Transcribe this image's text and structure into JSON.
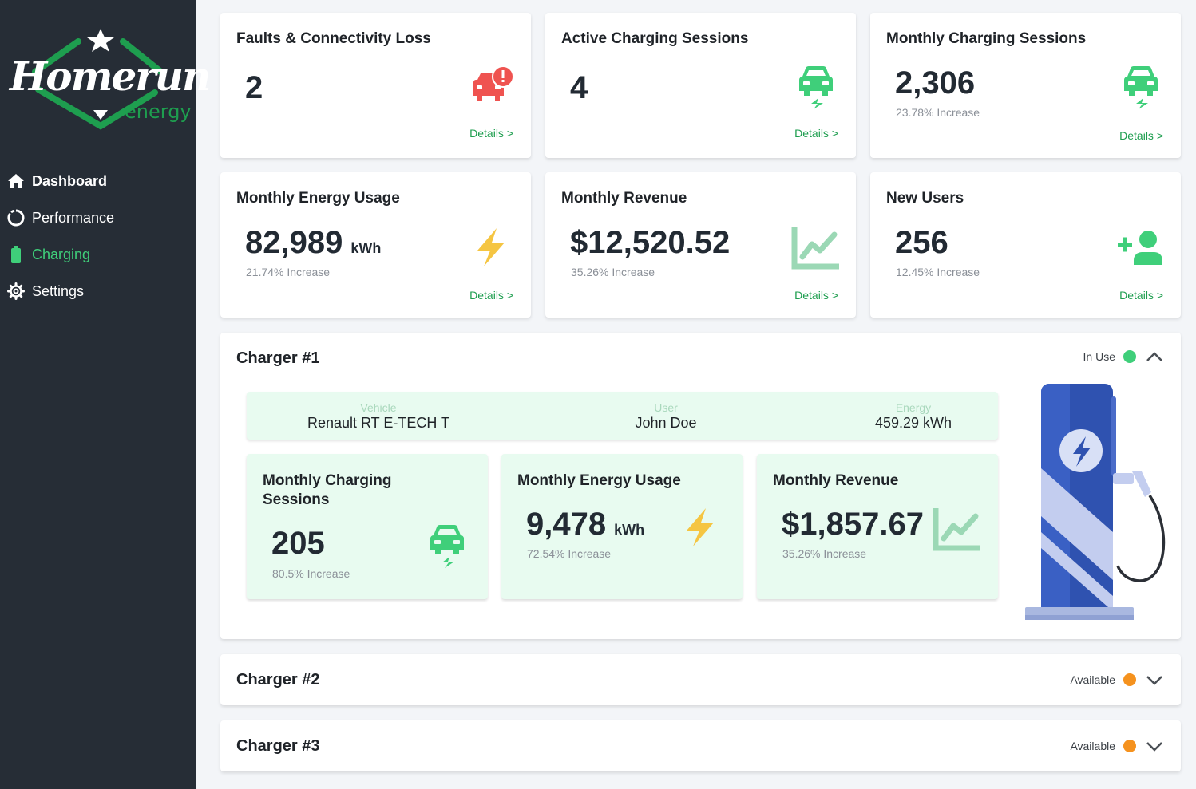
{
  "brand": {
    "logo_script": "Homerun",
    "logo_sub": "energy"
  },
  "colors": {
    "sidebar": "#262d36",
    "accent_green": "#3fcf7a",
    "details_green": "#1e9e4f",
    "fault_red": "#ef5350",
    "bolt_yellow": "#f5c542",
    "in_use": "#3fcf7a",
    "available": "#f5921e"
  },
  "nav": {
    "items": [
      {
        "label": "Dashboard",
        "icon": "home-icon"
      },
      {
        "label": "Performance",
        "icon": "circle-progress-icon"
      },
      {
        "label": "Charging",
        "icon": "battery-icon"
      },
      {
        "label": "Settings",
        "icon": "gear-icon"
      }
    ]
  },
  "cards": {
    "faults": {
      "title": "Faults & Connectivity Loss",
      "value": "2",
      "details": "Details >",
      "icon": "car-alert-icon"
    },
    "active": {
      "title": "Active Charging Sessions",
      "value": "4",
      "details": "Details >",
      "icon": "ev-car-icon"
    },
    "monthly_sessions": {
      "title": "Monthly Charging Sessions",
      "value": "2,306",
      "increase": "23.78% Increase",
      "details": "Details >",
      "icon": "ev-car-icon"
    },
    "energy": {
      "title": "Monthly Energy Usage",
      "value": "82,989",
      "unit": "kWh",
      "increase": "21.74% Increase",
      "details": "Details >",
      "icon": "bolt-icon"
    },
    "revenue": {
      "title": "Monthly Revenue",
      "value": "$12,520.52",
      "increase": "35.26% Increase",
      "details": "Details >",
      "icon": "chart-line-icon"
    },
    "users": {
      "title": "New Users",
      "value": "256",
      "increase": "12.45% Increase",
      "details": "Details >",
      "icon": "add-user-icon"
    }
  },
  "chargers": [
    {
      "title": "Charger #1",
      "status": "In Use",
      "expanded": true,
      "vehicle_label": "Vehicle",
      "vehicle": "Renault RT E-TECH T",
      "user_label": "User",
      "user": "John Doe",
      "energy_label": "Energy",
      "energy": "459.29 kWh",
      "sessions": {
        "title": "Monthly Charging Sessions",
        "value": "205",
        "increase": "80.5% Increase"
      },
      "energy_usage": {
        "title": "Monthly Energy Usage",
        "value": "9,478",
        "unit": "kWh",
        "increase": "72.54% Increase"
      },
      "revenue": {
        "title": "Monthly Revenue",
        "value": "$1,857.67",
        "increase": "35.26% Increase"
      }
    },
    {
      "title": "Charger #2",
      "status": "Available",
      "expanded": false
    },
    {
      "title": "Charger #3",
      "status": "Available",
      "expanded": false
    }
  ]
}
